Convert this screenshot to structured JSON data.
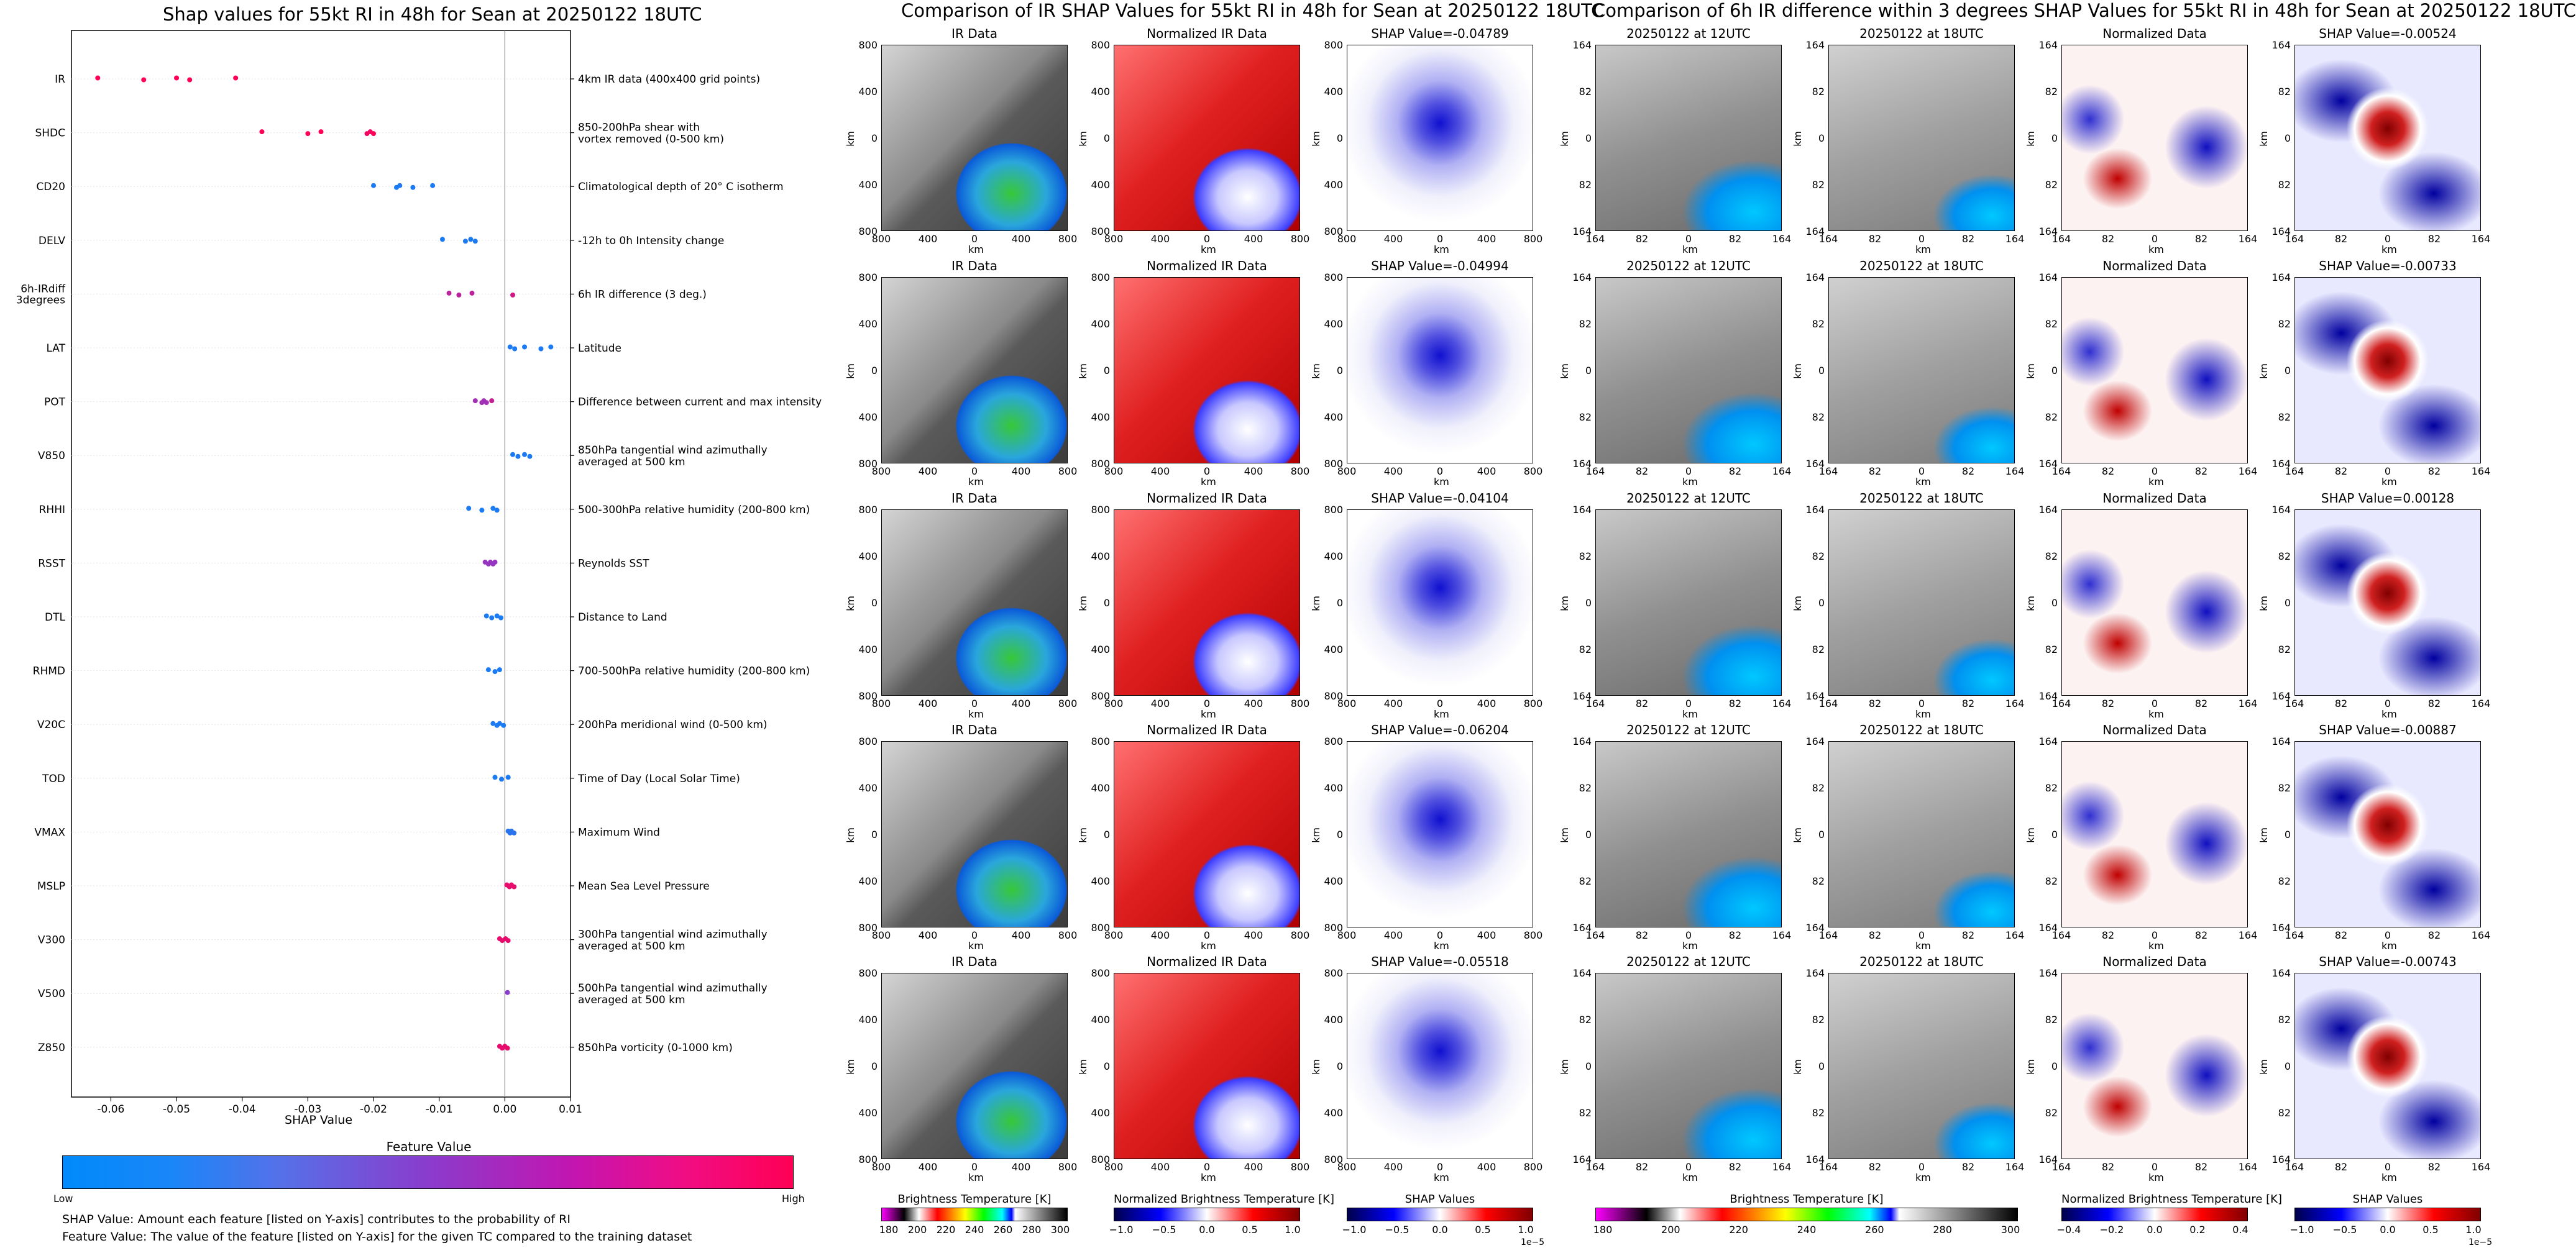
{
  "page": {
    "main_title": "Shap values for 55kt RI in 48h for Sean at 20250122 18UTC",
    "mid_title": "Comparison of IR SHAP Values for 55kt RI in 48h for Sean at 20250122 18UTC",
    "right_title": "Comparison of 6h IR difference within 3 degrees SHAP Values for 55kt RI in 48h for Sean at 20250122 18UTC"
  },
  "chart_data": [
    {
      "type": "scatter",
      "title": "Shap values for 55kt RI in 48h for Sean at 20250122 18UTC",
      "xlabel": "SHAP Value",
      "xlim": [
        -0.066,
        0.01
      ],
      "xticks": [
        "-0.06",
        "-0.05",
        "-0.04",
        "-0.03",
        "-0.02",
        "-0.01",
        "0.00",
        "0.01"
      ],
      "xtick_values": [
        -0.06,
        -0.05,
        -0.04,
        -0.03,
        -0.02,
        -0.01,
        0.0,
        0.01
      ],
      "features": [
        {
          "name": "IR",
          "desc": "4km IR data (400x400 grid points)",
          "points": [
            [
              -0.062,
              1
            ],
            [
              -0.055,
              1
            ],
            [
              -0.05,
              1
            ],
            [
              -0.048,
              1
            ],
            [
              -0.041,
              1
            ]
          ]
        },
        {
          "name": "SHDC",
          "desc": "850-200hPa shear with\nvortex removed (0-500 km)",
          "points": [
            [
              -0.037,
              1
            ],
            [
              -0.03,
              1
            ],
            [
              -0.028,
              1
            ],
            [
              -0.021,
              0.95
            ],
            [
              -0.0205,
              0.95
            ],
            [
              -0.02,
              1
            ]
          ]
        },
        {
          "name": "CD20",
          "desc": "Climatological depth of 20° C isotherm",
          "points": [
            [
              -0.02,
              0.1
            ],
            [
              -0.0165,
              0.1
            ],
            [
              -0.016,
              0.1
            ],
            [
              -0.014,
              0.1
            ],
            [
              -0.011,
              0.1
            ]
          ]
        },
        {
          "name": "DELV",
          "desc": "-12h to 0h Intensity change",
          "points": [
            [
              -0.0095,
              0.1
            ],
            [
              -0.006,
              0.1
            ],
            [
              -0.0052,
              0.1
            ],
            [
              -0.0045,
              0.1
            ]
          ]
        },
        {
          "name": "6h-IRdiff\n3degrees",
          "desc": "6h IR difference (3 deg.)",
          "points": [
            [
              -0.0085,
              0.7
            ],
            [
              -0.007,
              0.7
            ],
            [
              -0.005,
              0.7
            ],
            [
              0.0012,
              0.8
            ]
          ]
        },
        {
          "name": "LAT",
          "desc": "Latitude",
          "points": [
            [
              0.0008,
              0.1
            ],
            [
              0.0015,
              0.1
            ],
            [
              0.003,
              0.1
            ],
            [
              0.0055,
              0.1
            ],
            [
              0.007,
              0.1
            ]
          ]
        },
        {
          "name": "POT",
          "desc": "Difference between current and max intensity",
          "points": [
            [
              -0.0045,
              0.6
            ],
            [
              -0.0035,
              0.6
            ],
            [
              -0.0032,
              0.6
            ],
            [
              -0.0028,
              0.6
            ],
            [
              -0.002,
              0.75
            ]
          ]
        },
        {
          "name": "V850",
          "desc": "850hPa tangential wind azimuthally\naveraged at 500 km",
          "points": [
            [
              0.0012,
              0.1
            ],
            [
              0.002,
              0.1
            ],
            [
              0.003,
              0.1
            ],
            [
              0.0038,
              0.1
            ]
          ]
        },
        {
          "name": "RHHI",
          "desc": "500-300hPa relative humidity (200-800 km)",
          "points": [
            [
              -0.0055,
              0.1
            ],
            [
              -0.0035,
              0.1
            ],
            [
              -0.0018,
              0.1
            ],
            [
              -0.0012,
              0.1
            ]
          ]
        },
        {
          "name": "RSST",
          "desc": "Reynolds SST",
          "points": [
            [
              -0.003,
              0.55
            ],
            [
              -0.0025,
              0.55
            ],
            [
              -0.0022,
              0.55
            ],
            [
              -0.0018,
              0.55
            ],
            [
              -0.0015,
              0.55
            ]
          ]
        },
        {
          "name": "DTL",
          "desc": "Distance to Land",
          "points": [
            [
              -0.0028,
              0.1
            ],
            [
              -0.002,
              0.1
            ],
            [
              -0.0012,
              0.1
            ],
            [
              -0.0006,
              0.1
            ]
          ]
        },
        {
          "name": "RHMD",
          "desc": "700-500hPa relative humidity (200-800 km)",
          "points": [
            [
              -0.0025,
              0.1
            ],
            [
              -0.0015,
              0.1
            ],
            [
              -0.0008,
              0.1
            ]
          ]
        },
        {
          "name": "V20C",
          "desc": "200hPa meridional wind (0-500 km)",
          "points": [
            [
              -0.0018,
              0.1
            ],
            [
              -0.0012,
              0.1
            ],
            [
              -0.0008,
              0.1
            ],
            [
              -0.0002,
              0.1
            ]
          ]
        },
        {
          "name": "TOD",
          "desc": "Time of Day (Local Solar Time)",
          "points": [
            [
              -0.0015,
              0.1
            ],
            [
              -0.0005,
              0.1
            ],
            [
              0.0005,
              0.1
            ]
          ]
        },
        {
          "name": "VMAX",
          "desc": "Maximum Wind",
          "points": [
            [
              0.0005,
              0.15
            ],
            [
              0.0008,
              0.15
            ],
            [
              0.001,
              0.15
            ],
            [
              0.0014,
              0.15
            ]
          ]
        },
        {
          "name": "MSLP",
          "desc": "Mean Sea Level Pressure",
          "points": [
            [
              0.0003,
              0.9
            ],
            [
              0.0007,
              0.9
            ],
            [
              0.001,
              0.9
            ],
            [
              0.0014,
              0.9
            ]
          ]
        },
        {
          "name": "V300",
          "desc": "300hPa tangential wind azimuthally\naveraged at 500 km",
          "points": [
            [
              -0.0008,
              0.9
            ],
            [
              -0.0004,
              0.9
            ],
            [
              0.0001,
              0.9
            ],
            [
              0.0005,
              0.9
            ]
          ]
        },
        {
          "name": "V500",
          "desc": "500hPa tangential wind azimuthally\naveraged at 500 km",
          "points": [
            [
              0.0004,
              0.5
            ]
          ]
        },
        {
          "name": "Z850",
          "desc": "850hPa vorticity (0-1000 km)",
          "points": [
            [
              -0.0008,
              0.9
            ],
            [
              -0.0004,
              0.9
            ],
            [
              0.0,
              0.9
            ],
            [
              0.0004,
              0.9
            ]
          ]
        }
      ]
    }
  ],
  "feature_colorbar": {
    "label": "Feature Value",
    "low": "Low",
    "high": "High"
  },
  "notes": [
    "SHAP Value: Amount each feature [listed on Y-axis] contributes to the probability of RI",
    "Feature Value: The value of the feature [listed on Y-axis] for the given TC compared to the training dataset"
  ],
  "ir_panels": {
    "row_shap_titles": [
      "SHAP Value=-0.04789",
      "SHAP Value=-0.04994",
      "SHAP Value=-0.04104",
      "SHAP Value=-0.06204",
      "SHAP Value=-0.05518"
    ],
    "col1_title": "IR Data",
    "col2_title": "Normalized IR Data",
    "axis_label": "km",
    "xticks": [
      "800",
      "400",
      "0",
      "400",
      "800"
    ],
    "yticks": [
      "800",
      "400",
      "0",
      "400",
      "800"
    ]
  },
  "diff_panels": {
    "row_shap_titles": [
      "SHAP Value=-0.00524",
      "SHAP Value=-0.00733",
      "SHAP Value=0.00128",
      "SHAP Value=-0.00887",
      "SHAP Value=-0.00743"
    ],
    "col1_title": "20250122 at 12UTC",
    "col2_title": "20250122 at 18UTC",
    "col3_title": "Normalized Data",
    "axis_label": "km",
    "xticks": [
      "164",
      "82",
      "0",
      "82",
      "164"
    ],
    "yticks": [
      "164",
      "82",
      "0",
      "82",
      "164"
    ]
  },
  "colorbars": {
    "bt": {
      "label": "Brightness Temperature [K]",
      "ticks": [
        "180",
        "200",
        "220",
        "240",
        "260",
        "280",
        "300"
      ]
    },
    "nbt": {
      "label": "Normalized Brightness Temperature [K]",
      "ticks": [
        "−1.0",
        "−0.5",
        "0.0",
        "0.5",
        "1.0"
      ]
    },
    "shap": {
      "label": "SHAP Values",
      "ticks": [
        "−1.0",
        "−0.5",
        "0.0",
        "0.5",
        "1.0"
      ],
      "exp": "1e−5"
    },
    "bt2": {
      "label": "Brightness Temperature [K]",
      "ticks": [
        "180",
        "200",
        "220",
        "240",
        "260",
        "280",
        "300"
      ]
    },
    "nbt2": {
      "label": "Normalized Brightness Temperature [K]",
      "ticks": [
        "−0.4",
        "−0.2",
        "0.0",
        "0.2",
        "0.4"
      ]
    },
    "shap2": {
      "label": "SHAP Values",
      "ticks": [
        "−1.0",
        "−0.5",
        "0.0",
        "0.5",
        "1.0"
      ],
      "exp": "1e−5"
    }
  }
}
